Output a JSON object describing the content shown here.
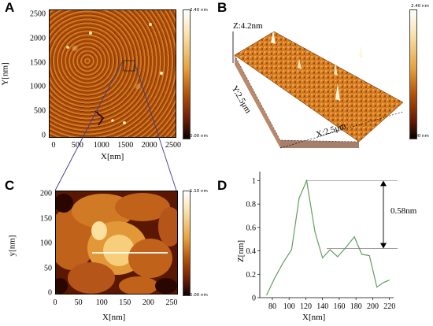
{
  "panels": {
    "a": {
      "letter": "A",
      "x_ticks": [
        "0",
        "500",
        "1000",
        "1500",
        "2000",
        "2500"
      ],
      "y_ticks": [
        "2500",
        "2000",
        "1500",
        "1000",
        "500",
        "0"
      ],
      "x_title": "X[nm]",
      "y_title": "Y[nm]",
      "cbar_max": "2.40 nm",
      "cbar_min": "0.00 nm"
    },
    "b": {
      "letter": "B",
      "z_label": "Z:4.2nm",
      "y_label": "Y:2.5μm",
      "x_label": "X:2.5μm",
      "cbar_max": "2.40 nm",
      "cbar_min": "0.00 nm"
    },
    "c": {
      "letter": "C",
      "x_ticks": [
        "0",
        "50",
        "100",
        "150",
        "200",
        "250"
      ],
      "y_ticks": [
        "200",
        "150",
        "100",
        "50",
        "0"
      ],
      "x_title": "X[nm]",
      "y_title": "y[nm]",
      "cbar_max": "1.10 nm",
      "cbar_min": "0.00 nm"
    },
    "d": {
      "letter": "D",
      "annotation": "0.58nm"
    }
  },
  "colors": {
    "afm_dark": "#1a0400",
    "afm_mid": "#b45308",
    "afm_light": "#f6c26b",
    "profile_line": "#5f9f5f"
  },
  "chart_data": {
    "type": "line",
    "title": "",
    "xlabel": "X[nm]",
    "ylabel": "Z[nm]",
    "xlim": [
      65,
      225
    ],
    "ylim": [
      0,
      1.05
    ],
    "x_ticks": [
      80,
      100,
      120,
      140,
      160,
      180,
      200,
      220
    ],
    "y_ticks": [
      0,
      0.2,
      0.4,
      0.6,
      0.8,
      1
    ],
    "grid": false,
    "series": [
      {
        "x": [
          73,
          83,
          93,
          103,
          112,
          121,
          131,
          140,
          149,
          158,
          168,
          178,
          187,
          196,
          205,
          213,
          220
        ],
        "y": [
          0.02,
          0.17,
          0.3,
          0.41,
          0.85,
          1.0,
          0.56,
          0.34,
          0.41,
          0.35,
          0.43,
          0.52,
          0.37,
          0.36,
          0.09,
          0.13,
          0.15
        ]
      }
    ],
    "annotations": [
      {
        "text": "0.58nm",
        "from_y": 1.0,
        "to_y": 0.42
      }
    ]
  }
}
